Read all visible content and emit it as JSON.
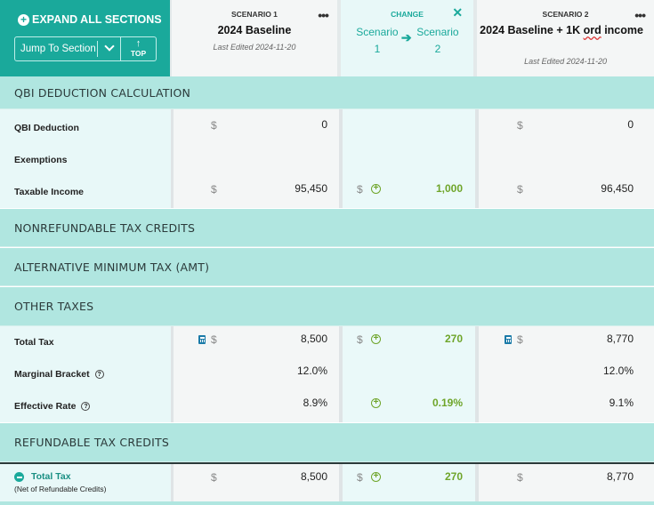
{
  "toolbar": {
    "expand_all_label": "EXPAND ALL SECTIONS",
    "jump_to_section_label": "Jump To Section",
    "top_label": "TOP"
  },
  "scenario1": {
    "label": "SCENARIO 1",
    "name": "2024 Baseline",
    "edited": "Last Edited 2024-11-20"
  },
  "change": {
    "label": "CHANGE",
    "from_word": "Scenario",
    "from_num": "1",
    "to_word": "Scenario",
    "to_num": "2"
  },
  "scenario2": {
    "label": "SCENARIO 2",
    "name_part1": "2024 Baseline + 1K ",
    "name_squiggle": "ord",
    "name_part2": " income",
    "edited": "Last Edited 2024-11-20"
  },
  "sections": {
    "qbi": "QBI DEDUCTION CALCULATION",
    "nonrefundable": "NONREFUNDABLE TAX CREDITS",
    "amt": "ALTERNATIVE MINIMUM TAX (AMT)",
    "other": "OTHER TAXES",
    "refundable": "REFUNDABLE TAX CREDITS"
  },
  "rows": {
    "qbi_deduction": {
      "label": "QBI Deduction",
      "s1": "0",
      "s2": "0"
    },
    "exemptions": {
      "label": "Exemptions"
    },
    "taxable_income": {
      "label": "Taxable Income",
      "s1": "95,450",
      "chg": "1,000",
      "s2": "96,450"
    },
    "total_tax": {
      "label": "Total Tax",
      "s1": "8,500",
      "chg": "270",
      "s2": "8,770"
    },
    "marginal_bracket": {
      "label": "Marginal Bracket",
      "s1": "12.0%",
      "s2": "12.0%"
    },
    "effective_rate": {
      "label": "Effective Rate",
      "s1": "8.9%",
      "chg": "0.19%",
      "s2": "9.1%"
    },
    "total_tax_net": {
      "label": "Total Tax",
      "sublabel": "(Net of Refundable Credits)",
      "s1": "8,500",
      "chg": "270",
      "s2": "8,770"
    }
  },
  "symbols": {
    "dollar": "$",
    "help": "?",
    "plus": "+",
    "menu_dots": "•••",
    "close": "✕",
    "arrow_right": "➔",
    "arrow_up": "↑"
  },
  "colors": {
    "teal": "#1aa99b",
    "section_bg": "#b0e6e0",
    "positive_green": "#6fa52a",
    "calculator_blue": "#1a7aa8"
  }
}
